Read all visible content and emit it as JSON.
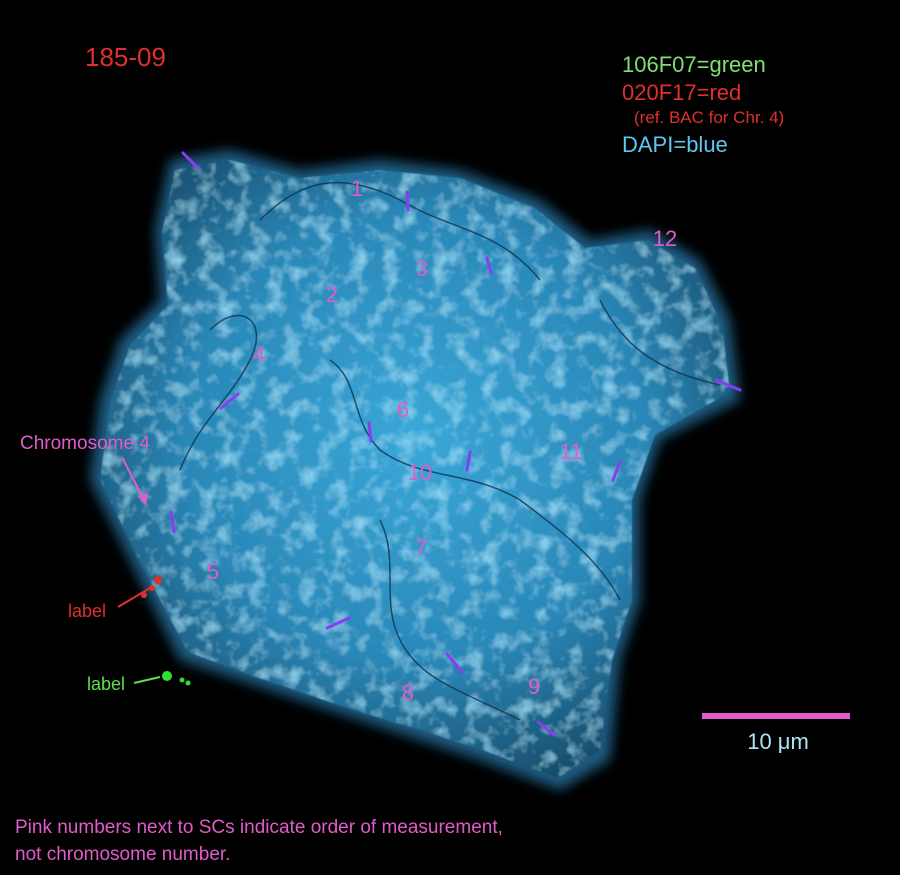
{
  "title": "185-09",
  "legend": [
    "106F07=green",
    "020F17=red",
    "(ref. BAC for Chr. 4)",
    "DAPI=blue"
  ],
  "measurement_numbers": [
    "1",
    "2",
    "3",
    "4",
    "5",
    "6",
    "7",
    "8",
    "9",
    "10",
    "11",
    "12"
  ],
  "annotations": {
    "chromosome": "Chromosome 4",
    "red_label": "label",
    "green_label": "label"
  },
  "scale_bar": "10 μm",
  "note": [
    "Pink numbers next to SCs indicate order of measurement,",
    "not chromosome number."
  ]
}
